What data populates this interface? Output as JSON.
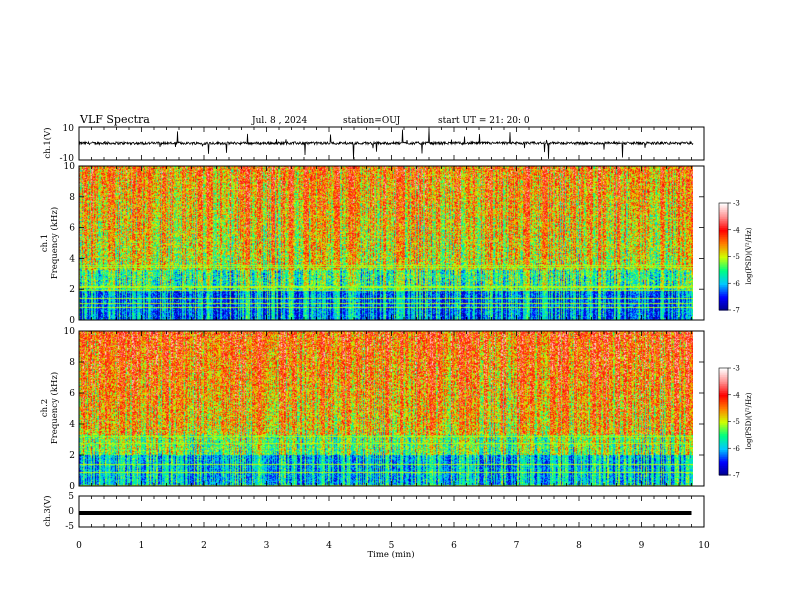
{
  "header": {
    "title": "VLF Spectra",
    "date": "Jul. 8 , 2024",
    "station": "station=OUJ",
    "start": "start UT = 21: 20: 0"
  },
  "chart_data": [
    {
      "type": "line",
      "ylabel": "ch.1(V)",
      "ylim": [
        -10,
        10
      ],
      "yticks": [
        "10",
        "-10"
      ],
      "xlim": [
        0,
        10
      ],
      "series_color": "#000000",
      "description_note": "time series waveform, small amplitude around ~+0.5 V with spikes"
    },
    {
      "type": "heatmap",
      "ylabel": "ch.1 Frequency (kHz)",
      "ylim": [
        0,
        10
      ],
      "yticks": [
        "0",
        "2",
        "4",
        "6",
        "8",
        "10"
      ],
      "xlim": [
        0,
        10
      ],
      "colorbar": {
        "label": "log(PSD)(V²/Hz)",
        "range": [
          -7,
          -3
        ],
        "ticks": [
          "-3",
          "-4",
          "-5",
          "-6",
          "-7"
        ],
        "colors": [
          "#00008a",
          "#0000ff",
          "#00c8ff",
          "#00ff80",
          "#d0ff00",
          "#ff8000",
          "#ff0000",
          "#ff9090",
          "#ffffff"
        ]
      }
    },
    {
      "type": "heatmap",
      "ylabel": "ch.2 Frequency (kHz)",
      "ylim": [
        0,
        10
      ],
      "yticks": [
        "0",
        "2",
        "4",
        "6",
        "8",
        "10"
      ],
      "xlim": [
        0,
        10
      ],
      "colorbar": {
        "label": "log(PSD)(V²/Hz)",
        "range": [
          -7,
          -3
        ],
        "ticks": [
          "-3",
          "-4",
          "-5",
          "-6",
          "-7"
        ]
      }
    },
    {
      "type": "line",
      "ylabel": "ch.3(V)",
      "ylim": [
        -5,
        5
      ],
      "yticks": [
        "5",
        "0",
        "-5"
      ],
      "xlim": [
        0,
        9.8
      ],
      "value": -0.5,
      "series_color": "#000000"
    }
  ],
  "xaxis": {
    "label": "Time (min)",
    "ticks": [
      "0",
      "1",
      "2",
      "3",
      "4",
      "5",
      "6",
      "7",
      "8",
      "9",
      "10"
    ]
  }
}
